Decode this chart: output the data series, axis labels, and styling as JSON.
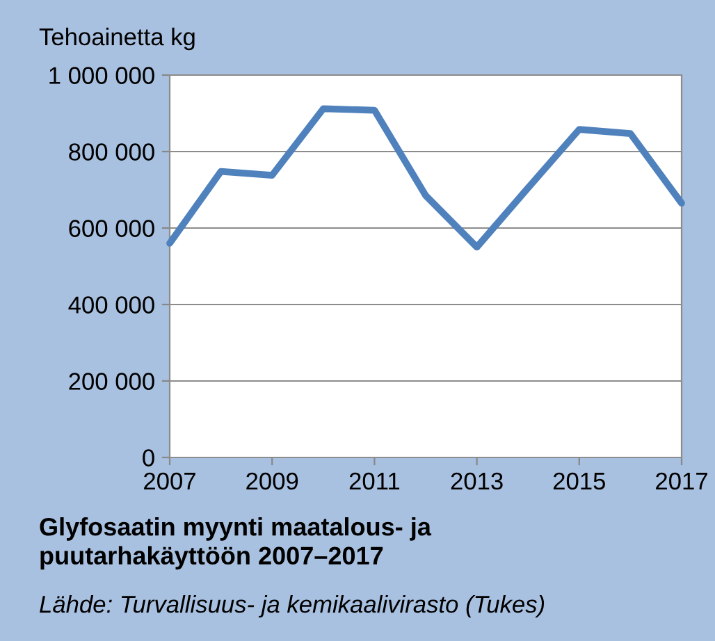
{
  "chart_data": {
    "type": "line",
    "title": "Glyfosaatin myynti maatalous- ja\npuutarhakäyttöön 2007–2017",
    "ylabel": "Tehoainetta kg",
    "annotations": [
      "Lähde: Turvallisuus- ja kemikaalivirasto (Tukes)"
    ],
    "x": [
      2007,
      2008,
      2009,
      2010,
      2011,
      2012,
      2013,
      2014,
      2015,
      2016,
      2017
    ],
    "series": [
      {
        "color": "#4f81bd",
        "values": [
          560000,
          748000,
          738000,
          912000,
          908000,
          685000,
          550000,
          705000,
          858000,
          847000,
          665000
        ]
      }
    ],
    "xlim": [
      2007,
      2017
    ],
    "xticks": [
      2007,
      2009,
      2011,
      2013,
      2015,
      2017
    ],
    "ylim": [
      0,
      1000000
    ],
    "yticks": [
      0,
      {
        "value": 200000,
        "label": "200 000"
      },
      {
        "value": 400000,
        "label": "400 000"
      },
      {
        "value": 600000,
        "label": "600 000"
      },
      {
        "value": 800000,
        "label": "800 000"
      },
      {
        "value": 1000000,
        "label": "1 000 000"
      }
    ],
    "grid": "y",
    "legend": false,
    "marker": "none",
    "line_style": "solid"
  }
}
